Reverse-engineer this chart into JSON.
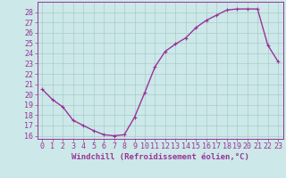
{
  "hours": [
    0,
    1,
    2,
    3,
    4,
    5,
    6,
    7,
    8,
    9,
    10,
    11,
    12,
    13,
    14,
    15,
    16,
    17,
    18,
    19,
    20,
    21,
    22,
    23
  ],
  "windchill": [
    20.5,
    19.5,
    18.8,
    17.5,
    17.0,
    16.5,
    16.1,
    16.0,
    16.1,
    17.8,
    20.2,
    22.7,
    24.2,
    24.9,
    25.5,
    26.5,
    27.2,
    27.7,
    28.2,
    28.3,
    28.3,
    28.3,
    24.8,
    23.2
  ],
  "line_color": "#993399",
  "bg_color": "#cce8e8",
  "grid_color": "#aacccc",
  "tick_color": "#993399",
  "xlabel": "Windchill (Refroidissement éolien,°C)",
  "ylim": [
    15.7,
    29.0
  ],
  "yticks": [
    16,
    17,
    18,
    19,
    20,
    21,
    22,
    23,
    24,
    25,
    26,
    27,
    28
  ],
  "xticks": [
    0,
    1,
    2,
    3,
    4,
    5,
    6,
    7,
    8,
    9,
    10,
    11,
    12,
    13,
    14,
    15,
    16,
    17,
    18,
    19,
    20,
    21,
    22,
    23
  ],
  "marker": "+",
  "marker_size": 3,
  "line_width": 1.0,
  "tick_fontsize": 6,
  "xlabel_fontsize": 6.5
}
